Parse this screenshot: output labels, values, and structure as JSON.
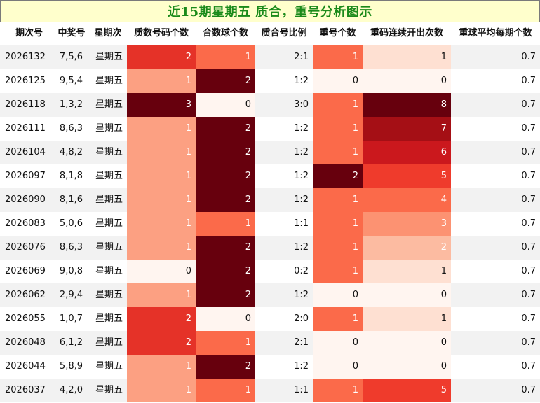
{
  "title": "近15期星期五 质合，重号分析图示",
  "headers": [
    "期次号",
    "中奖号",
    "星期次",
    "质数号码个数",
    "合数球个数",
    "质合号比例",
    "重号个数",
    "重码连续开出次数",
    "重球平均每期个数"
  ],
  "rows": [
    {
      "issue": "2026132",
      "numbers": "7,5,6",
      "weekday": "星期五",
      "prime_count": 2,
      "composite_count": 1,
      "ratio": "2:1",
      "repeat_count": 1,
      "consecutive_repeat": 1,
      "avg_repeat": "0.7"
    },
    {
      "issue": "2026125",
      "numbers": "9,5,4",
      "weekday": "星期五",
      "prime_count": 1,
      "composite_count": 2,
      "ratio": "1:2",
      "repeat_count": 0,
      "consecutive_repeat": 0,
      "avg_repeat": "0.7"
    },
    {
      "issue": "2026118",
      "numbers": "1,3,2",
      "weekday": "星期五",
      "prime_count": 3,
      "composite_count": 0,
      "ratio": "3:0",
      "repeat_count": 1,
      "consecutive_repeat": 8,
      "avg_repeat": "0.7"
    },
    {
      "issue": "2026111",
      "numbers": "8,6,3",
      "weekday": "星期五",
      "prime_count": 1,
      "composite_count": 2,
      "ratio": "1:2",
      "repeat_count": 1,
      "consecutive_repeat": 7,
      "avg_repeat": "0.7"
    },
    {
      "issue": "2026104",
      "numbers": "4,8,2",
      "weekday": "星期五",
      "prime_count": 1,
      "composite_count": 2,
      "ratio": "1:2",
      "repeat_count": 1,
      "consecutive_repeat": 6,
      "avg_repeat": "0.7"
    },
    {
      "issue": "2026097",
      "numbers": "8,1,8",
      "weekday": "星期五",
      "prime_count": 1,
      "composite_count": 2,
      "ratio": "1:2",
      "repeat_count": 2,
      "consecutive_repeat": 5,
      "avg_repeat": "0.7"
    },
    {
      "issue": "2026090",
      "numbers": "8,1,6",
      "weekday": "星期五",
      "prime_count": 1,
      "composite_count": 2,
      "ratio": "1:2",
      "repeat_count": 1,
      "consecutive_repeat": 4,
      "avg_repeat": "0.7"
    },
    {
      "issue": "2026083",
      "numbers": "5,0,6",
      "weekday": "星期五",
      "prime_count": 1,
      "composite_count": 1,
      "ratio": "1:1",
      "repeat_count": 1,
      "consecutive_repeat": 3,
      "avg_repeat": "0.7"
    },
    {
      "issue": "2026076",
      "numbers": "8,6,3",
      "weekday": "星期五",
      "prime_count": 1,
      "composite_count": 2,
      "ratio": "1:2",
      "repeat_count": 1,
      "consecutive_repeat": 2,
      "avg_repeat": "0.7"
    },
    {
      "issue": "2026069",
      "numbers": "9,0,8",
      "weekday": "星期五",
      "prime_count": 0,
      "composite_count": 2,
      "ratio": "0:2",
      "repeat_count": 1,
      "consecutive_repeat": 1,
      "avg_repeat": "0.7"
    },
    {
      "issue": "2026062",
      "numbers": "2,9,4",
      "weekday": "星期五",
      "prime_count": 1,
      "composite_count": 2,
      "ratio": "1:2",
      "repeat_count": 0,
      "consecutive_repeat": 0,
      "avg_repeat": "0.7"
    },
    {
      "issue": "2026055",
      "numbers": "1,0,7",
      "weekday": "星期五",
      "prime_count": 2,
      "composite_count": 0,
      "ratio": "2:0",
      "repeat_count": 1,
      "consecutive_repeat": 1,
      "avg_repeat": "0.7"
    },
    {
      "issue": "2026048",
      "numbers": "6,1,2",
      "weekday": "星期五",
      "prime_count": 2,
      "composite_count": 1,
      "ratio": "2:1",
      "repeat_count": 0,
      "consecutive_repeat": 0,
      "avg_repeat": "0.7"
    },
    {
      "issue": "2026044",
      "numbers": "5,8,9",
      "weekday": "星期五",
      "prime_count": 1,
      "composite_count": 2,
      "ratio": "1:2",
      "repeat_count": 0,
      "consecutive_repeat": 0,
      "avg_repeat": "0.7"
    },
    {
      "issue": "2026037",
      "numbers": "4,2,0",
      "weekday": "星期五",
      "prime_count": 1,
      "composite_count": 1,
      "ratio": "1:1",
      "repeat_count": 1,
      "consecutive_repeat": 5,
      "avg_repeat": "0.7"
    }
  ],
  "colors": {
    "title_bg": "#ffffcc",
    "title_text": "#1a8a1a",
    "alt_row": "#f2f2f2",
    "prime_count": {
      "0": "#fff5f0",
      "1": "#fca082",
      "2": "#e53228",
      "3": "#67000d"
    },
    "composite_count": {
      "0": "#fff5f0",
      "1": "#fb6a4a",
      "2": "#67000d"
    },
    "repeat_count": {
      "0": "#fff5f0",
      "1": "#fb6a4a",
      "2": "#67000d"
    },
    "consecutive_repeat": {
      "0": "#fff5f0",
      "1": "#fee0d2",
      "2": "#fcbba1",
      "3": "#fc9272",
      "4": "#fb6a4a",
      "5": "#ef3b2c",
      "6": "#cb181d",
      "7": "#a50f15",
      "8": "#67000d"
    }
  }
}
